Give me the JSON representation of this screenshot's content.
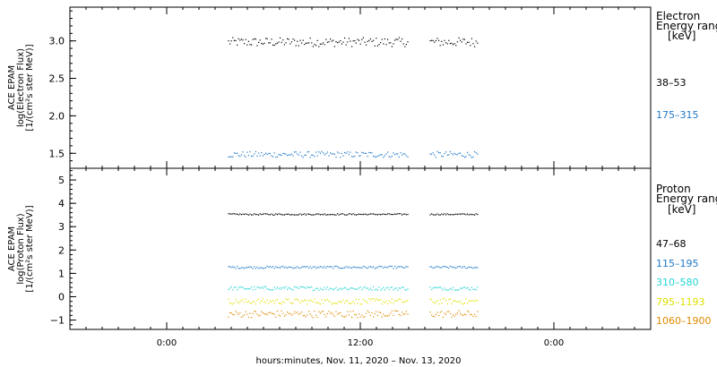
{
  "chart_data": [
    {
      "type": "scatter",
      "ylabel_lines": [
        "ACE EPAM",
        "log(Electron Flux)",
        "[1/(cm²s ster MeV)]"
      ],
      "ylim": [
        1.3,
        3.45
      ],
      "yticks": [
        {
          "value": 1.5,
          "label": "1.5"
        },
        {
          "value": 2.0,
          "label": "2.0"
        },
        {
          "value": 2.5,
          "label": "2.5"
        },
        {
          "value": 3.0,
          "label": "3.0"
        }
      ],
      "legend": {
        "title_lines": [
          "Electron",
          "Energy ranges",
          "[keV]"
        ],
        "entries": [
          {
            "label": "38–53",
            "color": "#000000"
          },
          {
            "label": "175–315",
            "color": "#1f78c8"
          }
        ]
      },
      "series": [
        {
          "name": "38–53",
          "color": "#000000",
          "mean": 2.99,
          "spread": 0.06
        },
        {
          "name": "175–315",
          "color": "#1f78c8",
          "mean": 1.49,
          "spread": 0.04
        }
      ]
    },
    {
      "type": "scatter",
      "ylabel_lines": [
        "ACE EPAM",
        "log(Proton Flux)",
        "[1/(cm²s ster MeV)]"
      ],
      "ylim": [
        -1.4,
        5.5
      ],
      "yticks": [
        {
          "value": -1,
          "label": "−1"
        },
        {
          "value": 0,
          "label": "0"
        },
        {
          "value": 1,
          "label": "1"
        },
        {
          "value": 2,
          "label": "2"
        },
        {
          "value": 3,
          "label": "3"
        },
        {
          "value": 4,
          "label": "4"
        },
        {
          "value": 5,
          "label": "5"
        }
      ],
      "legend": {
        "title_lines": [
          "Proton",
          "Energy ranges",
          "[keV]"
        ],
        "entries": [
          {
            "label": "47–68",
            "color": "#000000"
          },
          {
            "label": "115–195",
            "color": "#1f78c8"
          },
          {
            "label": "310–580",
            "color": "#22d3d3"
          },
          {
            "label": "795–1193",
            "color": "#e0e000"
          },
          {
            "label": "1060–1900",
            "color": "#e08a00"
          }
        ]
      },
      "series": [
        {
          "name": "47–68",
          "color": "#000000",
          "mean": 3.55,
          "spread": 0.03
        },
        {
          "name": "115–195",
          "color": "#1f78c8",
          "mean": 1.28,
          "spread": 0.05
        },
        {
          "name": "310–580",
          "color": "#22d3d3",
          "mean": 0.38,
          "spread": 0.08
        },
        {
          "name": "795–1193",
          "color": "#e0e000",
          "mean": -0.18,
          "spread": 0.12
        },
        {
          "name": "1060–1900",
          "color": "#e08a00",
          "mean": -0.72,
          "spread": 0.15
        }
      ]
    }
  ],
  "time_axis": {
    "xlabel": "hours:minutes, Nov. 11, 2020 – Nov. 13, 2020",
    "range_hours": [
      -6,
      30
    ],
    "ticks": [
      {
        "hour": 0,
        "label": "0:00"
      },
      {
        "hour": 12,
        "label": "12:00"
      },
      {
        "hour": 24,
        "label": "0:00"
      }
    ],
    "minor_step_hours": 1,
    "data_segments_hours": [
      [
        3.8,
        15.0
      ],
      [
        16.3,
        19.3
      ]
    ]
  },
  "colors": {
    "frame": "#000000",
    "background": "#ffffff"
  }
}
